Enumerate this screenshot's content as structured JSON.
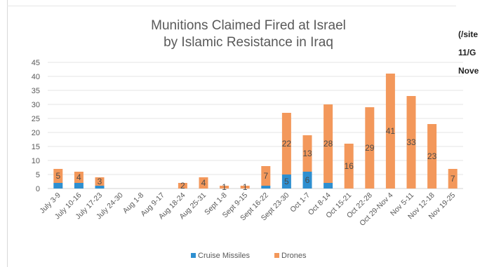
{
  "page": {
    "side_text_lines": [
      "(/site",
      "11/G",
      "Nove"
    ]
  },
  "chart_data": {
    "type": "bar",
    "stacked": true,
    "title": "Munitions Claimed Fired at Israel",
    "subtitle": "by Islamic Resistance in Iraq",
    "ylim": [
      0,
      45
    ],
    "yticks": [
      0,
      5,
      10,
      15,
      20,
      25,
      30,
      35,
      40,
      45
    ],
    "grid": true,
    "legend_position": "bottom",
    "categories": [
      "July 3-9",
      "July 10-16",
      "July 17-23",
      "July 24-30",
      "Aug 1-8",
      "Aug 9-17",
      "Aug 18-24",
      "Aug 25-31",
      "Sept 1-8",
      "Sept 9-15",
      "Sept 16-22",
      "Sept 23-30",
      "Oct 1-7",
      "Oct 8-14",
      "Oct 15-21",
      "Oct 22-28",
      "Oct 29-Nov 4",
      "Nov 5-11",
      "Nov 12-18",
      "Nov 19-25"
    ],
    "series": [
      {
        "name": "Cruise Missiles",
        "color": "#2e8fd0",
        "values": [
          2,
          2,
          1,
          0,
          0,
          0,
          0,
          0,
          0,
          0,
          1,
          5,
          6,
          2,
          0,
          0,
          0,
          0,
          0,
          0
        ]
      },
      {
        "name": "Drones",
        "color": "#f3985b",
        "values": [
          5,
          4,
          3,
          0,
          0,
          0,
          2,
          4,
          1,
          1,
          7,
          22,
          13,
          28,
          16,
          29,
          41,
          33,
          23,
          7
        ],
        "labels": [
          "5",
          "4",
          "3",
          "",
          "",
          "",
          "2",
          "4",
          "1",
          "1",
          "7",
          "22",
          "13",
          "28",
          "16",
          "29",
          "41",
          "33",
          "23",
          "7"
        ]
      }
    ],
    "cruise_labels": [
      "",
      "",
      "",
      "",
      "",
      "",
      "",
      "",
      "",
      "",
      "",
      "5",
      "6",
      "",
      "",
      "",
      "",
      "",
      "",
      ""
    ]
  }
}
